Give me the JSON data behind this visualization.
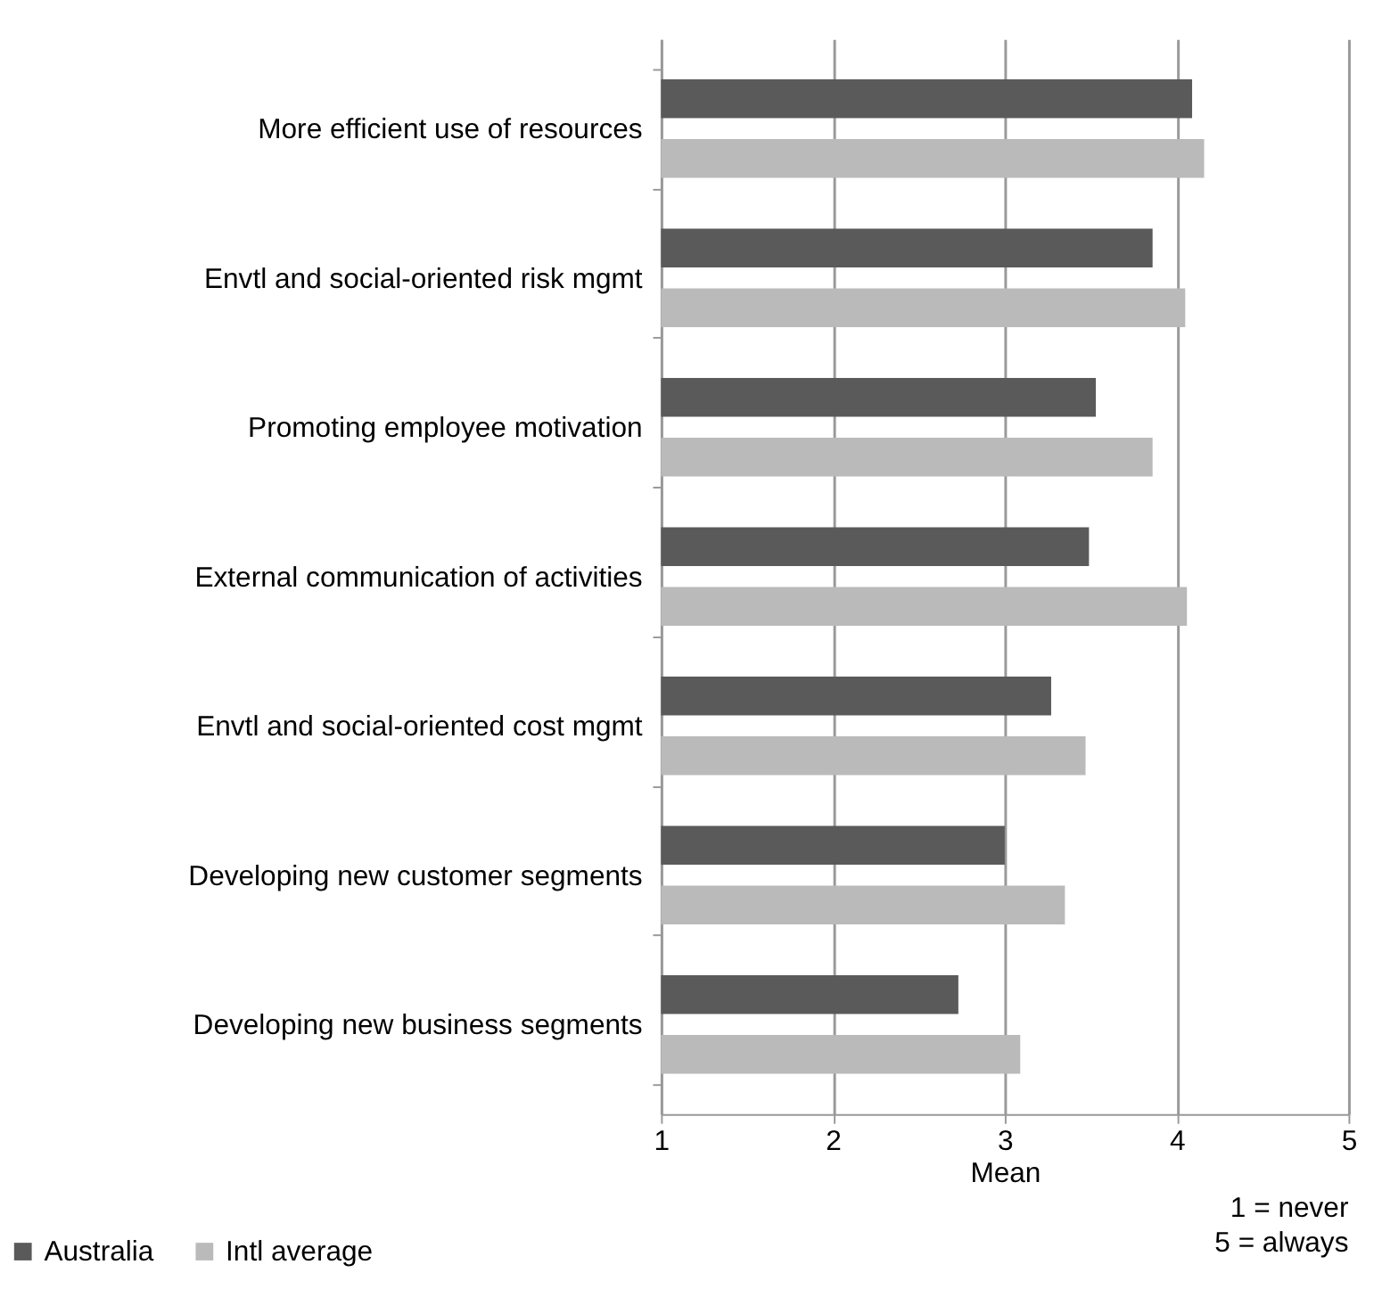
{
  "chart_data": {
    "type": "bar",
    "orientation": "horizontal",
    "xlabel": "Mean",
    "categories": [
      "More efficient use of resources",
      "Envtl and social-oriented risk mgmt",
      "Promoting employee motivation",
      "External communication of activities",
      "Envtl and social-oriented cost mgmt",
      "Developing new customer segments",
      "Developing new business segments"
    ],
    "series": [
      {
        "name": "Australia",
        "color": "#5a5a5a",
        "values": [
          4.09,
          3.86,
          3.53,
          3.49,
          3.27,
          3.0,
          2.73
        ]
      },
      {
        "name": "Intl average",
        "color": "#bababa",
        "values": [
          4.16,
          4.05,
          3.86,
          4.06,
          3.47,
          3.35,
          3.09
        ]
      }
    ],
    "xlim": [
      1,
      5
    ],
    "xticks": [
      1,
      2,
      3,
      4,
      5
    ],
    "grid": "x",
    "legend": "bottom left",
    "annotations": [
      "1 = never",
      "5 = always"
    ]
  }
}
